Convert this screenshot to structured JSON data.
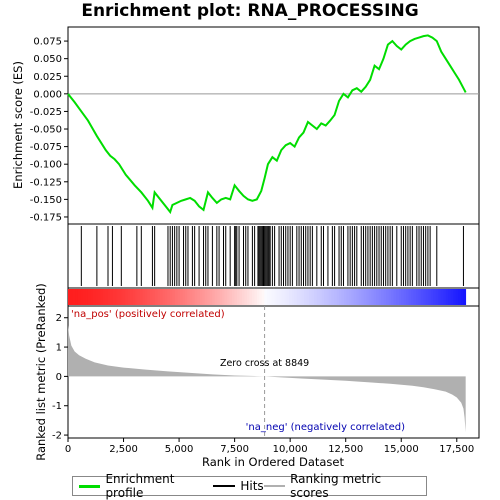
{
  "title": "Enrichment plot: RNA_PROCESSING",
  "colors": {
    "enrichment_line": "#00dd00",
    "hits": "#000000",
    "ranking_fill": "#b0b0b0",
    "zero_line": "#999999",
    "pos_label": "#c00000",
    "neg_label": "#0000b0"
  },
  "chart_data": {
    "type": "line",
    "x_axis": {
      "label": "Rank in Ordered Dataset",
      "range": [
        0,
        18500
      ],
      "ticks": [
        0,
        2500,
        5000,
        7500,
        10000,
        12500,
        15000,
        17500
      ],
      "tick_labels": [
        "0",
        "2,500",
        "5,000",
        "7,500",
        "10,000",
        "12,500",
        "15,000",
        "17,500"
      ]
    },
    "enrichment": {
      "ylabel": "Enrichment score (ES)",
      "ylim": [
        -0.185,
        0.095
      ],
      "ticks": [
        0.075,
        0.05,
        0.025,
        0.0,
        -0.025,
        -0.05,
        -0.075,
        -0.1,
        -0.125,
        -0.15,
        -0.175
      ],
      "tick_labels": [
        "0.075",
        "0.050",
        "0.025",
        "0.000",
        "-0.025",
        "-0.050",
        "-0.075",
        "-0.100",
        "-0.125",
        "-0.150",
        "-0.175"
      ],
      "x": [
        0,
        300,
        600,
        900,
        1300,
        1500,
        1700,
        1900,
        2100,
        2300,
        2600,
        3000,
        3300,
        3600,
        3800,
        3900,
        4100,
        4400,
        4600,
        4700,
        4900,
        5100,
        5300,
        5500,
        5700,
        5900,
        6100,
        6300,
        6500,
        6700,
        6900,
        7100,
        7300,
        7500,
        7700,
        7900,
        8100,
        8300,
        8500,
        8700,
        8849,
        9000,
        9200,
        9400,
        9600,
        9800,
        10000,
        10200,
        10400,
        10600,
        10800,
        11000,
        11200,
        11400,
        11600,
        11800,
        12000,
        12200,
        12400,
        12600,
        12800,
        13000,
        13200,
        13400,
        13600,
        13800,
        14000,
        14200,
        14400,
        14600,
        14800,
        15000,
        15200,
        15400,
        15600,
        15800,
        16000,
        16200,
        16400,
        16600,
        16800,
        17000,
        17200,
        17400,
        17600,
        17800,
        17900
      ],
      "y": [
        0.0,
        -0.012,
        -0.025,
        -0.038,
        -0.06,
        -0.07,
        -0.08,
        -0.088,
        -0.093,
        -0.1,
        -0.115,
        -0.13,
        -0.14,
        -0.152,
        -0.162,
        -0.14,
        -0.148,
        -0.16,
        -0.168,
        -0.158,
        -0.155,
        -0.152,
        -0.15,
        -0.148,
        -0.152,
        -0.16,
        -0.165,
        -0.14,
        -0.148,
        -0.155,
        -0.15,
        -0.148,
        -0.15,
        -0.13,
        -0.138,
        -0.145,
        -0.15,
        -0.152,
        -0.15,
        -0.138,
        -0.12,
        -0.1,
        -0.09,
        -0.095,
        -0.08,
        -0.073,
        -0.07,
        -0.075,
        -0.062,
        -0.055,
        -0.04,
        -0.045,
        -0.05,
        -0.042,
        -0.045,
        -0.038,
        -0.03,
        -0.01,
        0.0,
        -0.005,
        0.005,
        0.008,
        0.003,
        0.01,
        0.02,
        0.04,
        0.035,
        0.05,
        0.07,
        0.075,
        0.068,
        0.063,
        0.07,
        0.075,
        0.078,
        0.08,
        0.082,
        0.083,
        0.08,
        0.075,
        0.06,
        0.05,
        0.04,
        0.03,
        0.02,
        0.008,
        0.002
      ],
      "line_name": "Enrichment profile"
    },
    "hits": {
      "name": "Hits",
      "ranks": [
        600,
        1300,
        1800,
        2000,
        2400,
        3100,
        3300,
        3800,
        3900,
        4500,
        4600,
        4700,
        4800,
        4900,
        5000,
        5200,
        5300,
        5400,
        5600,
        5700,
        5900,
        6100,
        6200,
        6300,
        6500,
        6700,
        6800,
        7000,
        7100,
        7300,
        7500,
        7550,
        7600,
        7700,
        7900,
        8000,
        8100,
        8300,
        8400,
        8550,
        8600,
        8650,
        8700,
        8750,
        8800,
        8850,
        8900,
        8950,
        9000,
        9050,
        9100,
        9200,
        9300,
        9500,
        9600,
        9700,
        9800,
        9900,
        10000,
        10100,
        10300,
        10400,
        10500,
        10600,
        10700,
        10800,
        10900,
        11000,
        11200,
        11400,
        11500,
        11700,
        11900,
        12000,
        12200,
        12300,
        12400,
        12600,
        12700,
        12800,
        12900,
        13000,
        13200,
        13300,
        13400,
        13500,
        13600,
        13700,
        13800,
        13900,
        14000,
        14100,
        14200,
        14300,
        14400,
        14500,
        14600,
        14800,
        15000,
        15100,
        15200,
        15300,
        15400,
        15500,
        15700,
        15800,
        15900,
        16000,
        16100,
        16200,
        16300,
        16600,
        17800
      ]
    },
    "ranking": {
      "name": "Ranking metric scores",
      "ylabel": "Ranked list metric (PreRanked)",
      "ylim": [
        -2.1,
        2.4
      ],
      "ticks": [
        2,
        1,
        0,
        -1,
        -2
      ],
      "tick_labels": [
        "2",
        "1",
        "0",
        "-1",
        "-2"
      ],
      "x": [
        0,
        50,
        150,
        300,
        500,
        800,
        1200,
        1800,
        2500,
        3500,
        4500,
        5500,
        6500,
        7500,
        8500,
        8849,
        9500,
        10500,
        11500,
        12500,
        13500,
        14500,
        15500,
        16000,
        16500,
        17000,
        17300,
        17500,
        17700,
        17800,
        17850,
        17900
      ],
      "y": [
        1.75,
        1.4,
        1.05,
        0.85,
        0.72,
        0.6,
        0.48,
        0.37,
        0.3,
        0.23,
        0.17,
        0.12,
        0.07,
        0.03,
        0.01,
        0.0,
        -0.03,
        -0.07,
        -0.11,
        -0.15,
        -0.2,
        -0.25,
        -0.32,
        -0.37,
        -0.44,
        -0.52,
        -0.62,
        -0.72,
        -0.9,
        -1.1,
        -1.4,
        -1.9
      ]
    },
    "zero_cross": {
      "rank": 8849,
      "label": "Zero cross at 8849"
    },
    "pos_label": "'na_pos' (positively correlated)",
    "neg_label": "'na_neg' (negatively correlated)"
  },
  "legend": {
    "items": [
      {
        "label": "Enrichment profile",
        "color": "#00dd00"
      },
      {
        "label": "Hits",
        "color": "#000000"
      },
      {
        "label": "Ranking metric scores",
        "color": "#b0b0b0"
      }
    ]
  }
}
